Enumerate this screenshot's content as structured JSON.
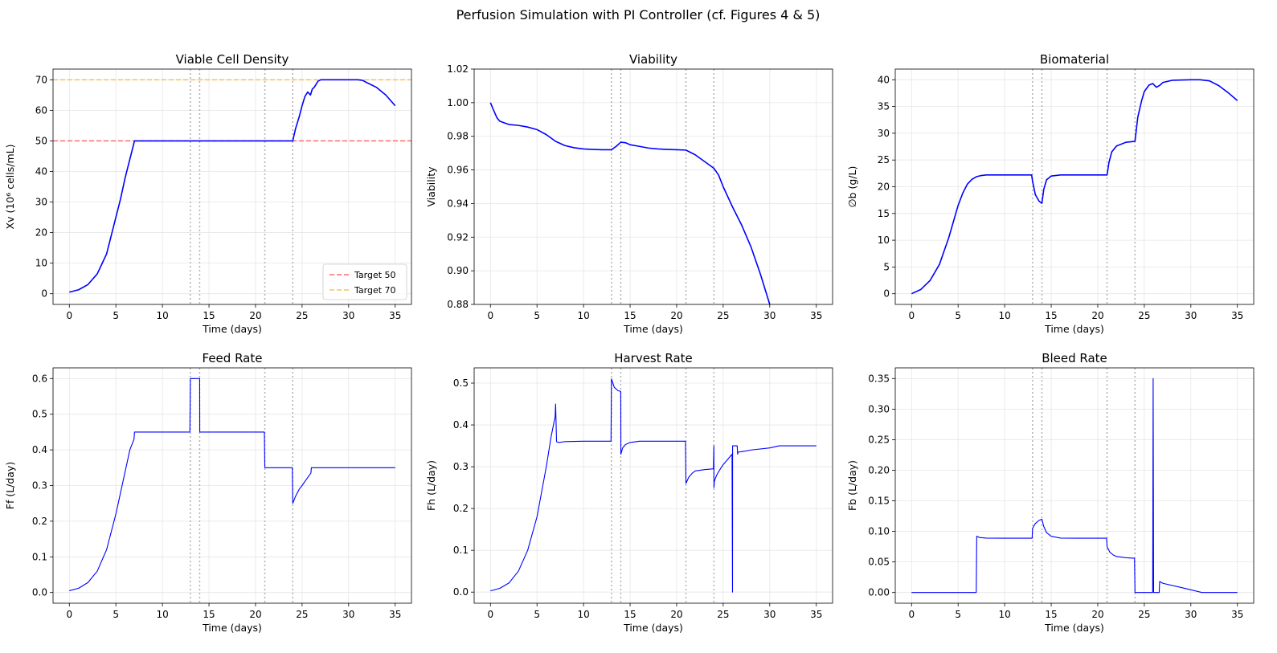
{
  "title": "Perfusion Simulation with PI Controller (cf. Figures 4 & 5)",
  "colors": {
    "series": "#0000ff",
    "target50": "#ff6b6b",
    "target70": "#f5c060",
    "grid": "#e6e6e6",
    "vline": "#b0b0b0"
  },
  "chart_data": [
    {
      "type": "line",
      "title": "Viable Cell Density",
      "xlabel": "Time (days)",
      "ylabel": "Xv (10⁶ cells/mL)",
      "xlim": [
        -1.75,
        36.75
      ],
      "ylim": [
        -3.5,
        73.5
      ],
      "xticks": [
        0,
        5,
        10,
        15,
        20,
        25,
        30,
        35
      ],
      "yticks": [
        0,
        10,
        20,
        30,
        40,
        50,
        60,
        70
      ],
      "ytick_labels": [
        "0",
        "10",
        "20",
        "30",
        "40",
        "50",
        "60",
        "70"
      ],
      "vlines": [
        13,
        14,
        21,
        24
      ],
      "hlines": [
        {
          "y": 50,
          "color": "#ff6b6b",
          "label": "Target 50"
        },
        {
          "y": 70,
          "color": "#f5c060",
          "label": "Target 70"
        }
      ],
      "legend": "lower-right",
      "grid": true,
      "series": [
        {
          "x": [
            0,
            1,
            2,
            3,
            4,
            5,
            5.5,
            6,
            6.5,
            7,
            8,
            10,
            12,
            13,
            14,
            16,
            18,
            20,
            21,
            22,
            23,
            24,
            24.3,
            24.7,
            25,
            25.3,
            25.6,
            25.9,
            26.1,
            26.3,
            26.7,
            27,
            28,
            30,
            31,
            31.5,
            32,
            33,
            34,
            35
          ],
          "y": [
            0.5,
            1.3,
            3.0,
            6.5,
            13,
            25,
            31,
            38,
            44,
            50,
            50,
            50,
            50,
            50,
            50,
            50,
            50,
            50,
            50,
            50,
            50,
            50,
            54,
            58,
            61.5,
            64.5,
            66,
            65,
            67,
            67.5,
            69.5,
            70,
            70,
            70,
            70,
            69.8,
            69,
            67.5,
            65,
            61.5
          ]
        }
      ]
    },
    {
      "type": "line",
      "title": "Viability",
      "xlabel": "Time (days)",
      "ylabel": "Viability",
      "xlim": [
        -1.75,
        36.75
      ],
      "ylim": [
        0.88,
        1.02
      ],
      "xticks": [
        0,
        5,
        10,
        15,
        20,
        25,
        30,
        35
      ],
      "yticks": [
        0.88,
        0.9,
        0.92,
        0.94,
        0.96,
        0.98,
        1.0,
        1.02
      ],
      "ytick_labels": [
        "0.88",
        "0.90",
        "0.92",
        "0.94",
        "0.96",
        "0.98",
        "1.00",
        "1.02"
      ],
      "vlines": [
        13,
        14,
        21,
        24
      ],
      "grid": true,
      "series": [
        {
          "x": [
            0,
            0.3,
            0.7,
            1,
            1.5,
            2,
            3,
            4,
            5,
            6,
            7,
            8,
            9,
            10,
            11,
            12,
            13,
            13.5,
            14,
            14.5,
            15,
            16,
            17,
            18,
            19,
            20,
            21,
            22,
            23,
            24,
            24.5,
            25,
            26,
            27,
            28,
            29,
            30
          ],
          "y": [
            1.0,
            0.996,
            0.991,
            0.989,
            0.988,
            0.987,
            0.9865,
            0.9855,
            0.984,
            0.981,
            0.977,
            0.9745,
            0.9732,
            0.9725,
            0.9722,
            0.972,
            0.972,
            0.974,
            0.9765,
            0.9762,
            0.975,
            0.974,
            0.973,
            0.9725,
            0.9722,
            0.972,
            0.9718,
            0.969,
            0.965,
            0.961,
            0.957,
            0.95,
            0.938,
            0.927,
            0.914,
            0.898,
            0.88
          ]
        }
      ]
    },
    {
      "type": "line",
      "title": "Biomaterial",
      "xlabel": "Time (days)",
      "ylabel": "∅b (g/L)",
      "xlim": [
        -1.75,
        36.75
      ],
      "ylim": [
        -2,
        42
      ],
      "xticks": [
        0,
        5,
        10,
        15,
        20,
        25,
        30,
        35
      ],
      "yticks": [
        0,
        5,
        10,
        15,
        20,
        25,
        30,
        35,
        40
      ],
      "ytick_labels": [
        "0",
        "5",
        "10",
        "15",
        "20",
        "25",
        "30",
        "35",
        "40"
      ],
      "vlines": [
        13,
        14,
        21,
        24
      ],
      "grid": true,
      "series": [
        {
          "x": [
            0,
            1,
            2,
            3,
            4,
            4.5,
            5,
            5.5,
            6,
            6.5,
            7,
            7.5,
            8,
            9,
            10,
            11,
            12,
            12.9,
            13,
            13.3,
            13.7,
            14,
            14.2,
            14.5,
            15,
            16,
            18,
            20,
            21,
            21.2,
            21.5,
            22,
            23,
            24,
            24.3,
            24.7,
            25,
            25.5,
            25.9,
            26.3,
            26.7,
            27,
            28,
            30,
            31,
            32,
            33,
            34,
            35
          ],
          "y": [
            0,
            0.8,
            2.5,
            5.5,
            10.5,
            13.5,
            16.5,
            18.8,
            20.5,
            21.4,
            21.9,
            22.1,
            22.2,
            22.2,
            22.2,
            22.2,
            22.2,
            22.2,
            21.0,
            18.5,
            17.3,
            16.9,
            19.5,
            21.3,
            22.0,
            22.2,
            22.2,
            22.2,
            22.2,
            24.5,
            26.5,
            27.6,
            28.3,
            28.5,
            33,
            36,
            37.8,
            39.0,
            39.3,
            38.6,
            39.0,
            39.5,
            39.9,
            40,
            40,
            39.8,
            38.9,
            37.6,
            36.1
          ]
        }
      ]
    },
    {
      "type": "line",
      "title": "Feed Rate",
      "xlabel": "Time (days)",
      "ylabel": "Ff (L/day)",
      "xlim": [
        -1.75,
        36.75
      ],
      "ylim": [
        -0.03,
        0.63
      ],
      "xticks": [
        0,
        5,
        10,
        15,
        20,
        25,
        30,
        35
      ],
      "yticks": [
        0.0,
        0.1,
        0.2,
        0.3,
        0.4,
        0.5,
        0.6
      ],
      "ytick_labels": [
        "0.0",
        "0.1",
        "0.2",
        "0.3",
        "0.4",
        "0.5",
        "0.6"
      ],
      "vlines": [
        13,
        14,
        21,
        24
      ],
      "grid": true,
      "series": [
        {
          "x": [
            0,
            1,
            2,
            3,
            4,
            5,
            5.5,
            6,
            6.5,
            6.95,
            7,
            10,
            12.95,
            13,
            14,
            14.01,
            18,
            20.95,
            21,
            23.95,
            24,
            24.3,
            24.7,
            25,
            25.4,
            25.95,
            26,
            30,
            35
          ],
          "y": [
            0.005,
            0.012,
            0.028,
            0.06,
            0.12,
            0.22,
            0.28,
            0.34,
            0.4,
            0.43,
            0.45,
            0.45,
            0.45,
            0.6,
            0.6,
            0.45,
            0.45,
            0.45,
            0.35,
            0.35,
            0.25,
            0.27,
            0.29,
            0.3,
            0.315,
            0.335,
            0.35,
            0.35,
            0.35
          ]
        }
      ]
    },
    {
      "type": "line",
      "title": "Harvest Rate",
      "xlabel": "Time (days)",
      "ylabel": "Fh (L/day)",
      "xlim": [
        -1.75,
        36.75
      ],
      "ylim": [
        -0.0265,
        0.5365
      ],
      "xticks": [
        0,
        5,
        10,
        15,
        20,
        25,
        30,
        35
      ],
      "yticks": [
        0.0,
        0.1,
        0.2,
        0.3,
        0.4,
        0.5
      ],
      "ytick_labels": [
        "0.0",
        "0.1",
        "0.2",
        "0.3",
        "0.4",
        "0.5"
      ],
      "vlines": [
        13,
        14,
        21,
        24
      ],
      "grid": true,
      "series": [
        {
          "x": [
            0,
            1,
            2,
            3,
            4,
            5,
            5.5,
            6,
            6.5,
            6.95,
            7,
            7.1,
            7.3,
            8,
            10,
            12.95,
            13,
            13.3,
            13.7,
            14,
            14.01,
            14.2,
            14.5,
            15,
            16,
            18,
            20.95,
            21,
            21.3,
            21.7,
            22,
            23,
            23.95,
            24,
            24.01,
            24.05,
            24.3,
            24.7,
            25,
            25.5,
            25.95,
            26,
            26.01,
            26.05,
            26.5,
            26.55,
            26.6,
            27,
            28,
            30,
            31,
            35
          ],
          "y": [
            0.003,
            0.009,
            0.022,
            0.05,
            0.1,
            0.18,
            0.24,
            0.3,
            0.37,
            0.42,
            0.45,
            0.36,
            0.358,
            0.36,
            0.361,
            0.361,
            0.51,
            0.49,
            0.482,
            0.48,
            0.33,
            0.345,
            0.353,
            0.358,
            0.361,
            0.361,
            0.361,
            0.26,
            0.275,
            0.285,
            0.29,
            0.293,
            0.295,
            0.35,
            0.25,
            0.265,
            0.28,
            0.295,
            0.305,
            0.318,
            0.33,
            0.0,
            0.35,
            0.35,
            0.35,
            0.33,
            0.335,
            0.336,
            0.34,
            0.345,
            0.35,
            0.35
          ]
        }
      ]
    },
    {
      "type": "line",
      "title": "Bleed Rate",
      "xlabel": "Time (days)",
      "ylabel": "Fb (L/day)",
      "xlim": [
        -1.75,
        36.75
      ],
      "ylim": [
        -0.0175,
        0.3675
      ],
      "xticks": [
        0,
        5,
        10,
        15,
        20,
        25,
        30,
        35
      ],
      "yticks": [
        0.0,
        0.05,
        0.1,
        0.15,
        0.2,
        0.25,
        0.3,
        0.35
      ],
      "ytick_labels": [
        "0.00",
        "0.05",
        "0.10",
        "0.15",
        "0.20",
        "0.25",
        "0.30",
        "0.35"
      ],
      "vlines": [
        13,
        14,
        21,
        24
      ],
      "grid": true,
      "series": [
        {
          "x": [
            0,
            6.95,
            7,
            7.3,
            8,
            10,
            12.95,
            13,
            13.3,
            13.7,
            14,
            14.2,
            14.5,
            15,
            16,
            18,
            20.95,
            21,
            21.3,
            21.7,
            22,
            23,
            23.95,
            24,
            25.9,
            25.95,
            26,
            26.05,
            26.6,
            26.65,
            27,
            29,
            31.2,
            35
          ],
          "y": [
            0,
            0,
            0.092,
            0.09,
            0.089,
            0.0888,
            0.0888,
            0.105,
            0.113,
            0.118,
            0.12,
            0.108,
            0.098,
            0.092,
            0.089,
            0.0888,
            0.0888,
            0.075,
            0.066,
            0.061,
            0.059,
            0.057,
            0.056,
            0,
            0,
            0.35,
            0,
            0,
            0,
            0.018,
            0.015,
            0.008,
            0,
            0
          ]
        }
      ]
    }
  ]
}
